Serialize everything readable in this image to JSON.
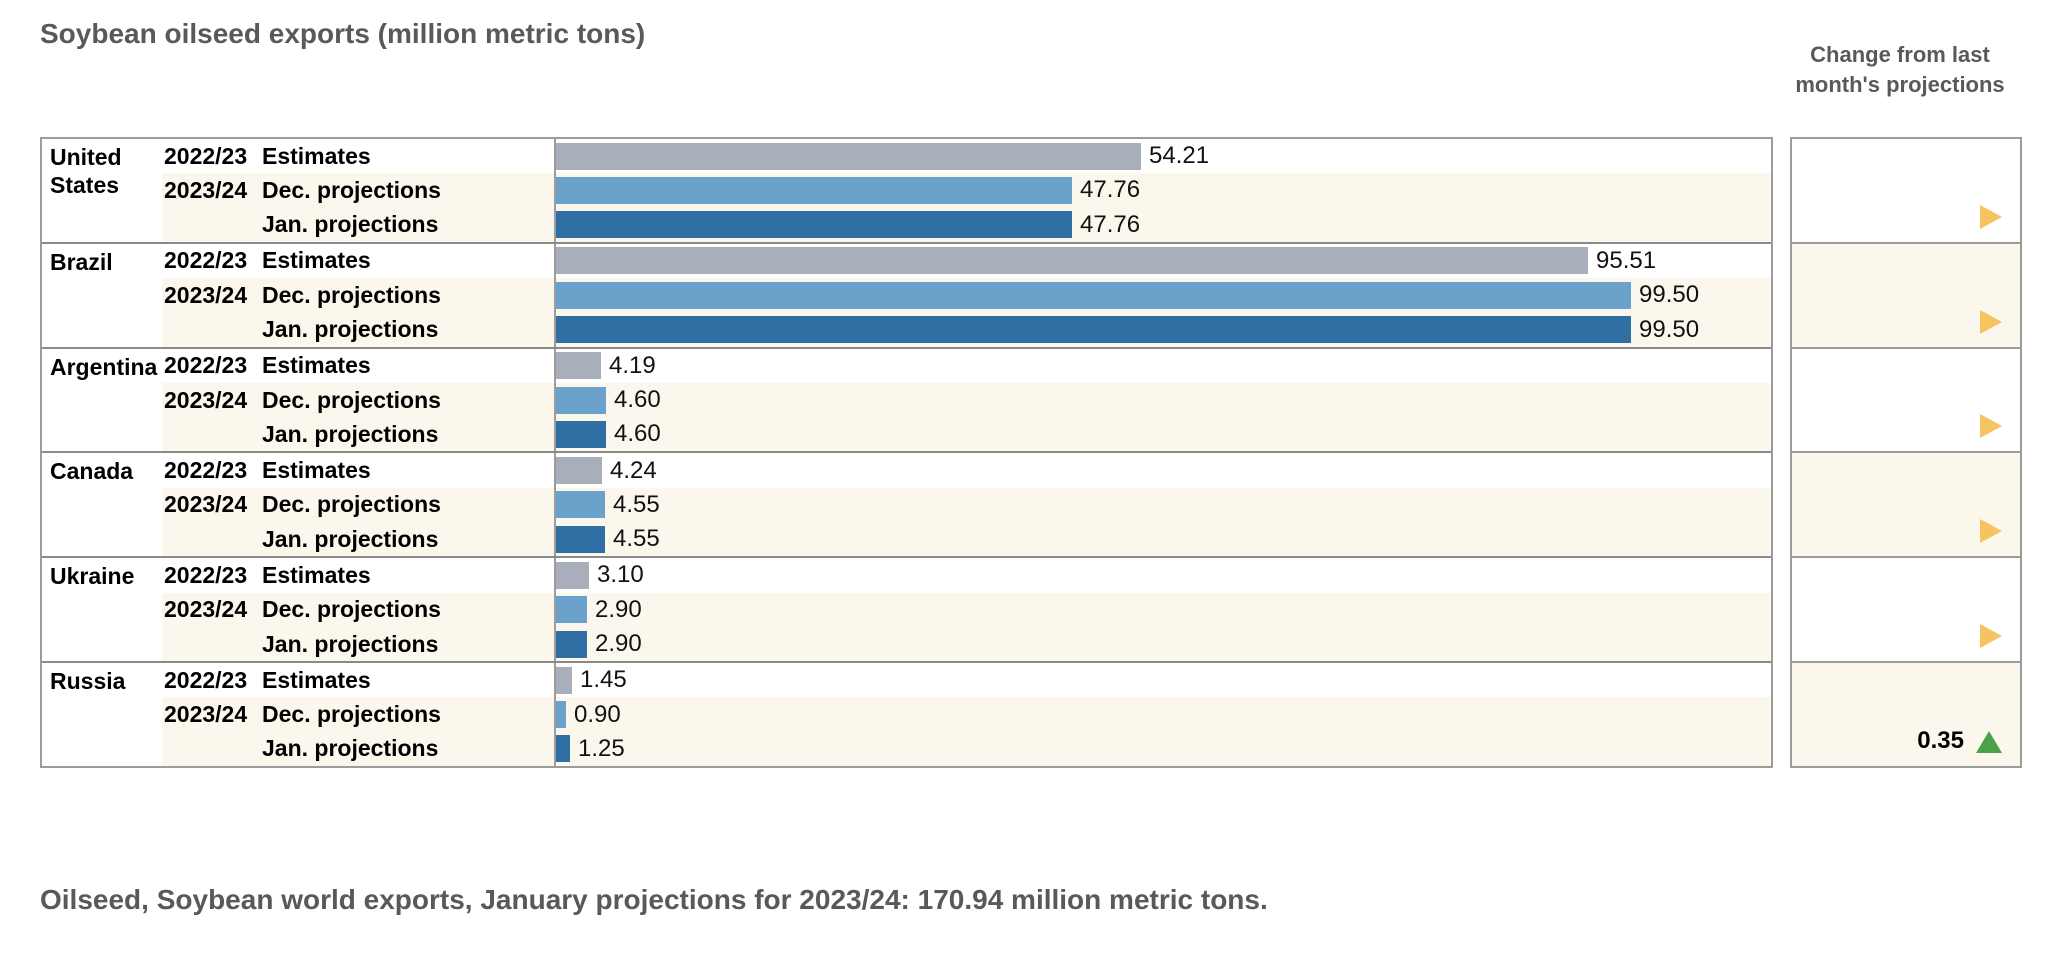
{
  "title": "Soybean oilseed exports (million metric tons)",
  "change_header": {
    "line1": "Change from last",
    "line2": "month's projections"
  },
  "footer": "Oilseed, Soybean world exports, January projections for 2023/24: 170.94 million metric tons.",
  "colors": {
    "estimates_bar": "#a9afba",
    "dec_projection_bar": "#6ba2cc",
    "jan_projection_bar": "#2f6fa4",
    "no_change_arrow": "#f5c360",
    "increase_arrow": "#4aa347",
    "projection_row_bg": "#fcf7ec",
    "text_heading": "#58595b"
  },
  "chart_data": {
    "type": "bar",
    "title": "Soybean oilseed exports (million metric tons)",
    "unit": "million metric tons",
    "orientation": "horizontal",
    "xlim": [
      0,
      110
    ],
    "series": [
      {
        "year": "2022/23",
        "label": "Estimates",
        "color_key": "estimates_bar"
      },
      {
        "year": "2023/24",
        "label": "Dec. projections",
        "color_key": "dec_projection_bar"
      },
      {
        "year": "",
        "label": "Jan. projections",
        "color_key": "jan_projection_bar"
      }
    ],
    "countries": [
      {
        "name": "United States",
        "values": [
          54.21,
          47.76,
          47.76
        ],
        "change": null
      },
      {
        "name": "Brazil",
        "values": [
          95.51,
          99.5,
          99.5
        ],
        "change": null
      },
      {
        "name": "Argentina",
        "values": [
          4.19,
          4.6,
          4.6
        ],
        "change": null
      },
      {
        "name": "Canada",
        "values": [
          4.24,
          4.55,
          4.55
        ],
        "change": null
      },
      {
        "name": "Ukraine",
        "values": [
          3.1,
          2.9,
          2.9
        ],
        "change": null
      },
      {
        "name": "Russia",
        "values": [
          1.45,
          0.9,
          1.25
        ],
        "change": 0.35,
        "change_direction": "up"
      }
    ],
    "world_total_jan_2023_24": 170.94
  }
}
